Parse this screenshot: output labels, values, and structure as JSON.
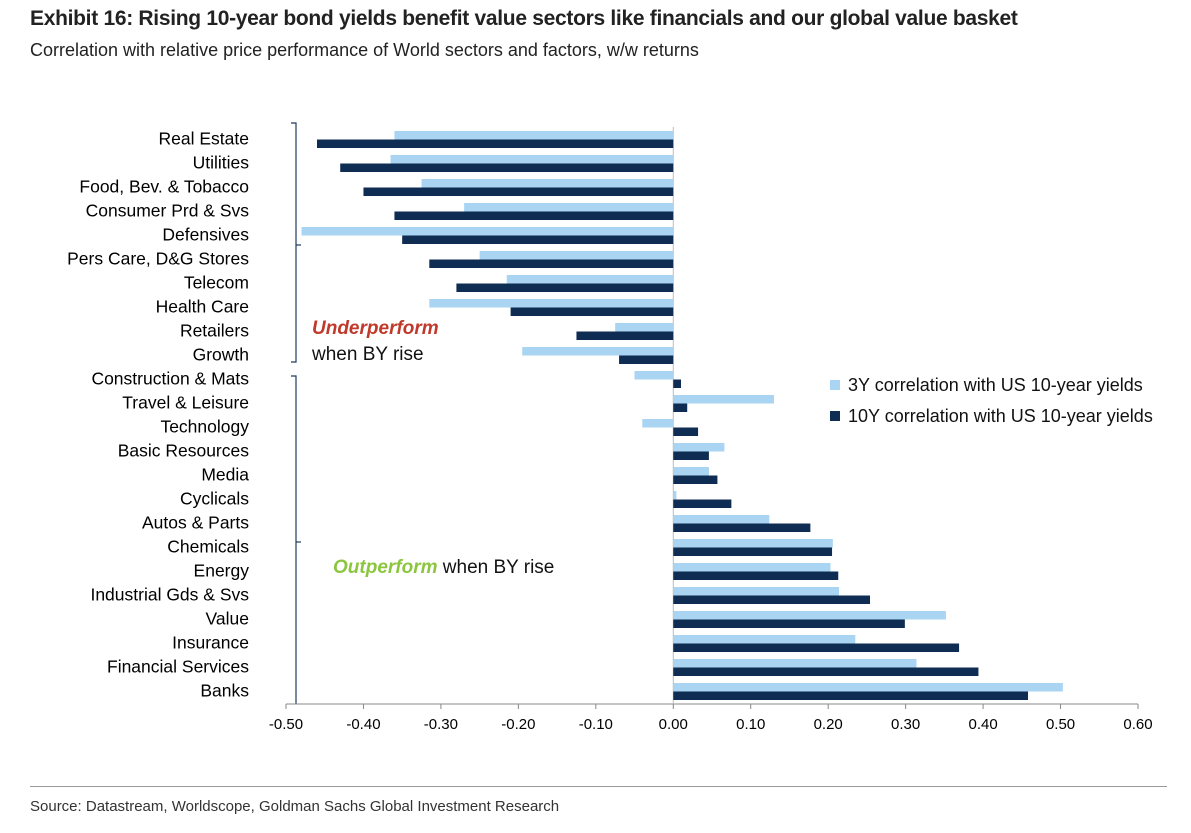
{
  "chart_data": {
    "type": "hbar",
    "title": "Exhibit 16: Rising 10-year bond yields benefit value sectors like financials and our global value basket",
    "subtitle": "Correlation with relative price performance of World sectors and factors, w/w returns",
    "source": "Source: Datastream, Worldscope, Goldman Sachs Global Investment Research",
    "categories": [
      "Real Estate",
      "Utilities",
      "Food, Bev. & Tobacco",
      "Consumer Prd & Svs",
      "Defensives",
      "Pers Care, D&G Stores",
      "Telecom",
      "Health Care",
      "Retailers",
      "Growth",
      "Construction & Mats",
      "Travel & Leisure",
      "Technology",
      "Basic Resources",
      "Media",
      "Cyclicals",
      "Autos & Parts",
      "Chemicals",
      "Energy",
      "Industrial Gds & Svs",
      "Value",
      "Insurance",
      "Financial Services",
      "Banks"
    ],
    "series": [
      {
        "name": "3Y correlation with US 10-year yields",
        "color": "#a9d4f2",
        "values": [
          -0.36,
          -0.365,
          -0.325,
          -0.27,
          -0.48,
          -0.25,
          -0.215,
          -0.315,
          -0.075,
          -0.195,
          -0.05,
          0.13,
          -0.04,
          0.066,
          0.046,
          0.004,
          0.124,
          0.206,
          0.203,
          0.214,
          0.352,
          0.235,
          0.314,
          0.503
        ]
      },
      {
        "name": "10Y correlation with US 10-year yields",
        "color": "#0f2d52",
        "values": [
          -0.46,
          -0.43,
          -0.4,
          -0.36,
          -0.35,
          -0.315,
          -0.28,
          -0.21,
          -0.125,
          -0.07,
          0.01,
          0.018,
          0.032,
          0.046,
          0.057,
          0.075,
          0.177,
          0.205,
          0.213,
          0.254,
          0.299,
          0.369,
          0.394,
          0.458
        ]
      }
    ],
    "xlim": [
      -0.5,
      0.6
    ],
    "xticks": [
      {
        "value": -0.5,
        "label": "-0.50"
      },
      {
        "value": -0.4,
        "label": "-0.40"
      },
      {
        "value": -0.3,
        "label": "-0.30"
      },
      {
        "value": -0.2,
        "label": "-0.20"
      },
      {
        "value": -0.1,
        "label": "-0.10"
      },
      {
        "value": 0,
        "label": "0.00"
      },
      {
        "value": 0.1,
        "label": "0.10"
      },
      {
        "value": 0.2,
        "label": "0.20"
      },
      {
        "value": 0.3,
        "label": "0.30"
      },
      {
        "value": 0.4,
        "label": "0.40"
      },
      {
        "value": 0.5,
        "label": "0.50"
      },
      {
        "value": 0.6,
        "label": "0.60"
      }
    ],
    "annotations": [
      {
        "emphasis": "Underperform",
        "text": "when BY rise"
      },
      {
        "emphasis": "Outperform",
        "text": "when BY rise"
      }
    ],
    "grid": false
  }
}
